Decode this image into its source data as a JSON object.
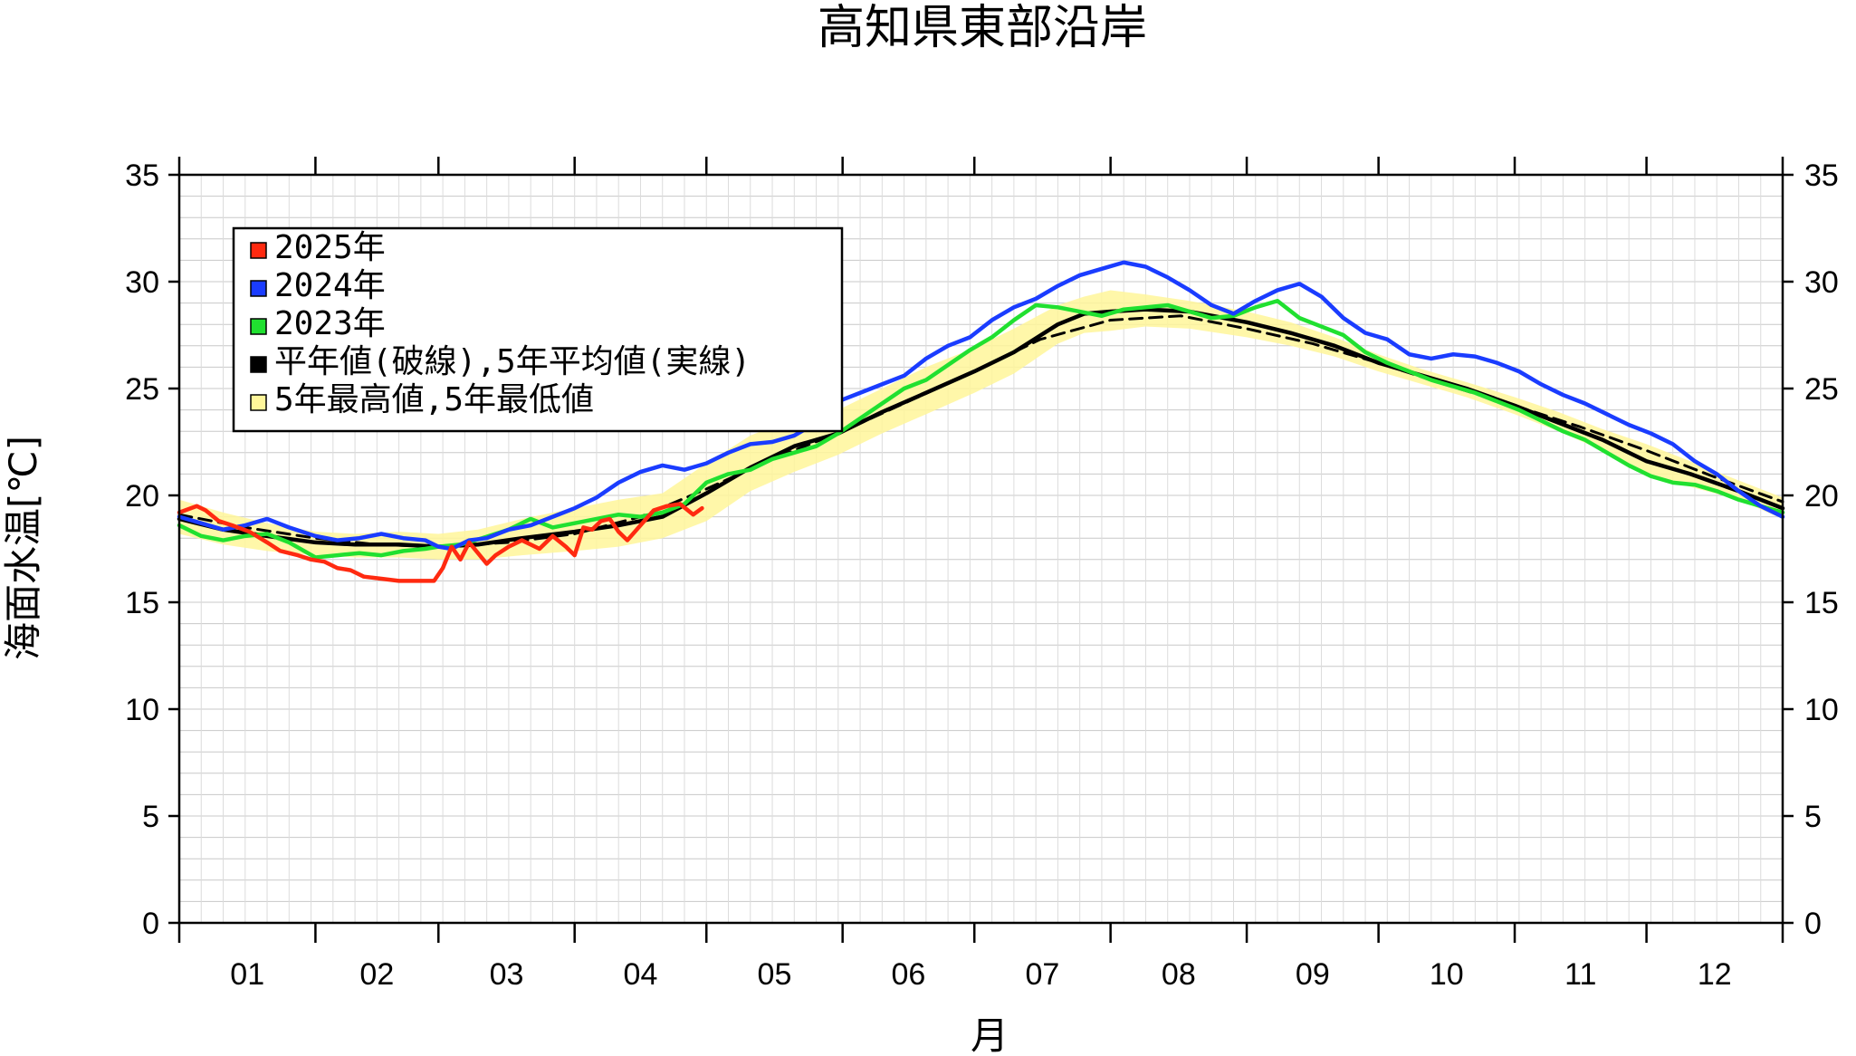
{
  "chart_data": {
    "type": "line",
    "title": "高知県東部沿岸",
    "xlabel": "月",
    "ylabel": "海面水温[℃]",
    "ylim": [
      0,
      35
    ],
    "yticks": [
      0,
      5,
      10,
      15,
      20,
      25,
      30,
      35
    ],
    "xlim": [
      0,
      365
    ],
    "month_labels": [
      "01",
      "02",
      "03",
      "04",
      "05",
      "06",
      "07",
      "08",
      "09",
      "10",
      "11",
      "12"
    ],
    "month_starts": [
      0,
      31,
      59,
      90,
      120,
      151,
      181,
      212,
      243,
      273,
      304,
      334,
      365
    ],
    "grid": true,
    "legend_position": "top-left",
    "legend": [
      {
        "label": "2025年",
        "color": "#ff2a10"
      },
      {
        "label": "2024年",
        "color": "#1a3cff"
      },
      {
        "label": "2023年",
        "color": "#20e030"
      },
      {
        "label": "平年値(破線),5年平均値(実線)",
        "color": "#000000"
      },
      {
        "label": "5年最高値,5年最低値",
        "color": "#fff69a"
      }
    ],
    "series": [
      {
        "name": "2025年",
        "color": "#ff2a10",
        "x": [
          0,
          4,
          6,
          9,
          12,
          16,
          20,
          23,
          27,
          30,
          33,
          36,
          39,
          42,
          46,
          50,
          54,
          58,
          60,
          62,
          64,
          66,
          68,
          70,
          72,
          75,
          78,
          82,
          85,
          88,
          90,
          92,
          94,
          96,
          98,
          100,
          102,
          105,
          108,
          111,
          114,
          117,
          119
        ],
        "y": [
          19.2,
          19.5,
          19.3,
          18.8,
          18.6,
          18.3,
          17.8,
          17.4,
          17.2,
          17.0,
          16.9,
          16.6,
          16.5,
          16.2,
          16.1,
          16.0,
          16.0,
          16.0,
          16.6,
          17.6,
          17.0,
          17.8,
          17.3,
          16.8,
          17.2,
          17.6,
          17.9,
          17.5,
          18.1,
          17.6,
          17.2,
          18.5,
          18.4,
          18.8,
          18.9,
          18.3,
          17.9,
          18.6,
          19.3,
          19.5,
          19.6,
          19.1,
          19.4
        ]
      },
      {
        "name": "2024年",
        "color": "#1a3cff",
        "x": [
          0,
          5,
          10,
          15,
          20,
          25,
          31,
          36,
          41,
          46,
          51,
          56,
          59,
          62,
          66,
          70,
          75,
          80,
          85,
          90,
          95,
          100,
          105,
          110,
          115,
          120,
          125,
          130,
          135,
          140,
          145,
          150,
          155,
          160,
          165,
          170,
          175,
          180,
          185,
          190,
          195,
          200,
          205,
          210,
          215,
          220,
          225,
          230,
          235,
          240,
          245,
          250,
          255,
          260,
          265,
          270,
          275,
          280,
          285,
          290,
          295,
          300,
          305,
          310,
          315,
          320,
          325,
          330,
          335,
          340,
          345,
          350,
          355,
          360,
          365
        ],
        "y": [
          19.0,
          18.7,
          18.4,
          18.6,
          18.9,
          18.5,
          18.1,
          17.9,
          18.0,
          18.2,
          18.0,
          17.9,
          17.6,
          17.5,
          17.9,
          18.0,
          18.4,
          18.6,
          19.0,
          19.4,
          19.9,
          20.6,
          21.1,
          21.4,
          21.2,
          21.5,
          22.0,
          22.4,
          22.5,
          22.8,
          23.4,
          24.4,
          24.8,
          25.2,
          25.6,
          26.4,
          27.0,
          27.4,
          28.2,
          28.8,
          29.2,
          29.8,
          30.3,
          30.6,
          30.9,
          30.7,
          30.2,
          29.6,
          28.9,
          28.5,
          29.1,
          29.6,
          29.9,
          29.3,
          28.3,
          27.6,
          27.3,
          26.6,
          26.4,
          26.6,
          26.5,
          26.2,
          25.8,
          25.2,
          24.7,
          24.3,
          23.8,
          23.3,
          22.9,
          22.4,
          21.6,
          21.0,
          20.2,
          19.5,
          19.0
        ]
      },
      {
        "name": "2023年",
        "color": "#20e030",
        "x": [
          0,
          5,
          10,
          15,
          20,
          25,
          31,
          36,
          41,
          46,
          51,
          56,
          59,
          64,
          69,
          75,
          80,
          85,
          90,
          95,
          100,
          105,
          110,
          115,
          120,
          125,
          130,
          135,
          140,
          145,
          150,
          155,
          160,
          165,
          170,
          175,
          180,
          185,
          190,
          195,
          200,
          205,
          210,
          215,
          220,
          225,
          230,
          235,
          240,
          245,
          250,
          255,
          260,
          265,
          270,
          275,
          280,
          285,
          290,
          295,
          300,
          305,
          310,
          315,
          320,
          325,
          330,
          335,
          340,
          345,
          350,
          355,
          360,
          365
        ],
        "y": [
          18.6,
          18.1,
          17.9,
          18.1,
          18.2,
          17.8,
          17.1,
          17.2,
          17.3,
          17.2,
          17.4,
          17.5,
          17.6,
          17.7,
          18.0,
          18.4,
          18.9,
          18.5,
          18.7,
          18.9,
          19.1,
          19.0,
          19.2,
          19.6,
          20.6,
          21.0,
          21.2,
          21.7,
          22.0,
          22.3,
          22.9,
          23.6,
          24.3,
          25.0,
          25.4,
          26.1,
          26.8,
          27.4,
          28.2,
          28.9,
          28.8,
          28.6,
          28.4,
          28.7,
          28.8,
          28.9,
          28.6,
          28.3,
          28.4,
          28.8,
          29.1,
          28.3,
          27.9,
          27.5,
          26.7,
          26.2,
          25.8,
          25.4,
          25.1,
          24.8,
          24.4,
          24.0,
          23.5,
          23.0,
          22.6,
          22.0,
          21.4,
          20.9,
          20.6,
          20.5,
          20.2,
          19.8,
          19.5,
          19.2
        ]
      },
      {
        "name": "5年平均値",
        "color": "#000000",
        "x": [
          0,
          10,
          20,
          31,
          40,
          50,
          59,
          68,
          78,
          90,
          100,
          110,
          120,
          130,
          140,
          150,
          160,
          170,
          181,
          190,
          200,
          206,
          212,
          220,
          230,
          243,
          253,
          263,
          273,
          283,
          293,
          304,
          314,
          324,
          334,
          344,
          355,
          365
        ],
        "y": [
          18.9,
          18.4,
          18.1,
          17.8,
          17.7,
          17.7,
          17.6,
          17.7,
          18.0,
          18.3,
          18.6,
          19.0,
          20.1,
          21.3,
          22.3,
          22.9,
          23.9,
          24.8,
          25.8,
          26.7,
          28.0,
          28.5,
          28.6,
          28.7,
          28.6,
          28.1,
          27.6,
          27.0,
          26.2,
          25.6,
          25.0,
          24.2,
          23.4,
          22.6,
          21.6,
          21.0,
          20.2,
          19.4
        ]
      },
      {
        "name": "平年値",
        "color": "#000000",
        "dashed": true,
        "x": [
          0,
          15,
          31,
          45,
          59,
          75,
          90,
          105,
          120,
          135,
          151,
          166,
          181,
          196,
          212,
          228,
          243,
          258,
          273,
          288,
          304,
          319,
          334,
          349,
          365
        ],
        "y": [
          19.1,
          18.5,
          18.0,
          17.7,
          17.6,
          17.8,
          18.2,
          19.0,
          20.3,
          21.7,
          23.0,
          24.4,
          25.8,
          27.3,
          28.2,
          28.4,
          27.8,
          27.1,
          26.2,
          25.2,
          24.2,
          23.2,
          22.1,
          20.9,
          19.7
        ]
      },
      {
        "name": "5年最高値,5年最低値",
        "color": "#fff69a",
        "band": true,
        "x": [
          0,
          10,
          20,
          31,
          40,
          50,
          59,
          68,
          78,
          90,
          100,
          110,
          120,
          130,
          140,
          150,
          160,
          170,
          181,
          190,
          200,
          206,
          212,
          220,
          230,
          243,
          253,
          263,
          273,
          283,
          293,
          304,
          314,
          324,
          334,
          344,
          355,
          365
        ],
        "high": [
          19.8,
          19.2,
          18.7,
          18.3,
          18.2,
          18.3,
          18.2,
          18.4,
          18.9,
          19.4,
          19.8,
          20.1,
          21.5,
          22.8,
          23.6,
          24.0,
          25.0,
          26.0,
          26.9,
          27.8,
          28.9,
          29.3,
          29.6,
          29.4,
          29.1,
          28.6,
          28.1,
          27.4,
          26.6,
          25.9,
          25.3,
          24.6,
          23.9,
          23.1,
          22.4,
          21.6,
          20.7,
          19.9
        ],
        "low": [
          18.2,
          17.7,
          17.4,
          17.2,
          17.1,
          17.1,
          17.0,
          17.0,
          17.2,
          17.4,
          17.6,
          18.0,
          18.8,
          20.2,
          21.1,
          21.9,
          22.9,
          23.8,
          24.8,
          25.7,
          27.1,
          27.6,
          27.7,
          27.9,
          27.8,
          27.4,
          27.0,
          26.5,
          25.8,
          25.2,
          24.6,
          23.8,
          23.0,
          22.1,
          20.9,
          20.4,
          19.8,
          18.9
        ]
      }
    ]
  }
}
